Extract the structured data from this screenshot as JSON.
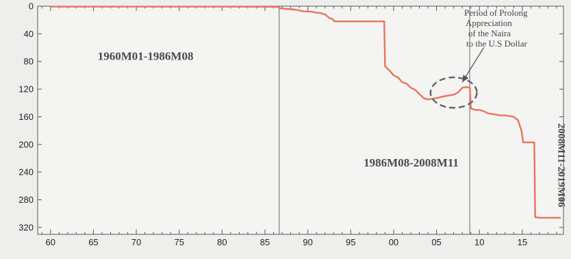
{
  "chart_data": {
    "type": "line",
    "title": "",
    "xlabel": "",
    "ylabel": "",
    "xlim": [
      1958.5,
      2019.8
    ],
    "ylim": [
      0,
      330
    ],
    "y_axis_inverted": true,
    "x_ticks": [
      1960,
      1965,
      1970,
      1975,
      1980,
      1985,
      1990,
      1995,
      2000,
      2005,
      2010,
      2015
    ],
    "x_tick_labels": [
      "60",
      "65",
      "70",
      "75",
      "80",
      "85",
      "90",
      "95",
      "00",
      "05",
      "10",
      "15"
    ],
    "y_ticks": [
      0,
      40,
      80,
      120,
      160,
      200,
      240,
      280,
      320
    ],
    "y_tick_labels": [
      "0",
      "40",
      "80",
      "120",
      "160",
      "200",
      "240",
      "280",
      "320"
    ],
    "grid": false,
    "line_color": "#e8735f",
    "series": [
      {
        "name": "",
        "points": [
          [
            1960.0,
            0.7
          ],
          [
            1964.0,
            0.7
          ],
          [
            1968.0,
            0.7
          ],
          [
            1972.0,
            0.7
          ],
          [
            1976.0,
            0.7
          ],
          [
            1980.0,
            0.7
          ],
          [
            1983.0,
            0.8
          ],
          [
            1985.0,
            0.9
          ],
          [
            1986.5,
            1.0
          ],
          [
            1986.7,
            3.0
          ],
          [
            1987.5,
            4.0
          ],
          [
            1988.5,
            5.0
          ],
          [
            1989.5,
            7.5
          ],
          [
            1990.5,
            8.0
          ],
          [
            1991.0,
            9.5
          ],
          [
            1991.5,
            10.0
          ],
          [
            1992.0,
            12.0
          ],
          [
            1992.5,
            17.0
          ],
          [
            1992.9,
            19.0
          ],
          [
            1993.1,
            22.0
          ],
          [
            1994.0,
            22.0
          ],
          [
            1996.0,
            22.0
          ],
          [
            1998.0,
            22.0
          ],
          [
            1998.9,
            22.0
          ],
          [
            1999.0,
            87.0
          ],
          [
            1999.5,
            93.0
          ],
          [
            2000.0,
            100.0
          ],
          [
            2000.5,
            103.0
          ],
          [
            2001.0,
            110.0
          ],
          [
            2001.5,
            112.0
          ],
          [
            2002.0,
            118.0
          ],
          [
            2002.5,
            121.0
          ],
          [
            2003.0,
            127.0
          ],
          [
            2003.5,
            133.0
          ],
          [
            2004.0,
            135.0
          ],
          [
            2005.0,
            133.0
          ],
          [
            2006.0,
            130.0
          ],
          [
            2007.0,
            128.0
          ],
          [
            2007.5,
            125.0
          ],
          [
            2008.0,
            118.0
          ],
          [
            2008.5,
            117.0
          ],
          [
            2008.9,
            118.0
          ],
          [
            2009.0,
            148.0
          ],
          [
            2009.5,
            150.0
          ],
          [
            2010.0,
            150.0
          ],
          [
            2010.5,
            152.0
          ],
          [
            2011.0,
            155.0
          ],
          [
            2011.5,
            156.0
          ],
          [
            2012.0,
            157.0
          ],
          [
            2012.5,
            158.0
          ],
          [
            2013.0,
            158.0
          ],
          [
            2013.5,
            159.0
          ],
          [
            2014.0,
            160.0
          ],
          [
            2014.5,
            165.0
          ],
          [
            2014.9,
            180.0
          ],
          [
            2015.1,
            197.0
          ],
          [
            2015.5,
            197.0
          ],
          [
            2016.0,
            197.0
          ],
          [
            2016.4,
            197.0
          ],
          [
            2016.5,
            305.0
          ],
          [
            2017.0,
            306.0
          ],
          [
            2018.0,
            306.0
          ],
          [
            2019.0,
            306.0
          ],
          [
            2019.5,
            306.0
          ]
        ]
      }
    ],
    "dividers": [
      1986.66,
      2008.87
    ],
    "period_labels": [
      {
        "text": "1960M01-1986M08",
        "x": 1965.5,
        "y": 78
      },
      {
        "text": "1986M08-2008M11",
        "x": 1996.5,
        "y": 232
      },
      {
        "text": "2008M11-2019M06",
        "x": 2019.2,
        "y": 230,
        "vertical": true
      }
    ],
    "annotation": {
      "lines": [
        "Period of Prolong",
        "Appreciation",
        "of the Naira",
        "to the U.S Dollar"
      ],
      "circle_center": [
        2007.0,
        125.0
      ],
      "circle_radius_x_years": 2.7,
      "circle_radius_y_units": 22.0,
      "arrow_from": [
        2010.5,
        60.0
      ],
      "arrow_to": [
        2008.0,
        110.0
      ]
    }
  }
}
